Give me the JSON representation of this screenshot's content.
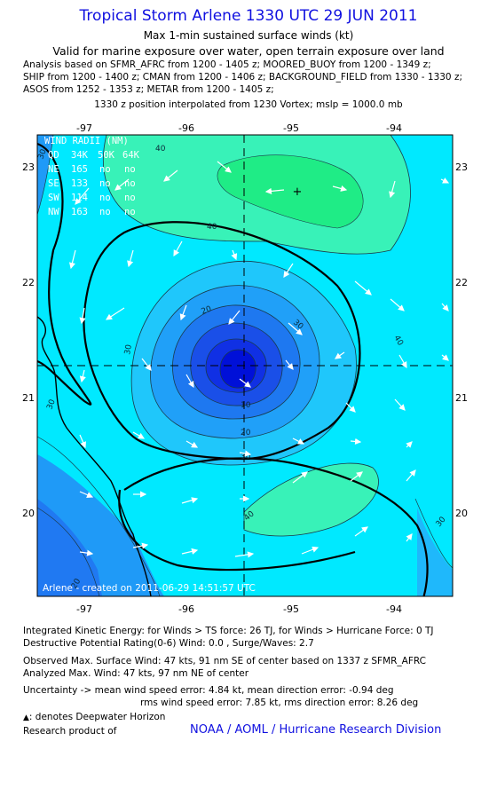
{
  "header": {
    "title": "Tropical Storm Arlene 1330 UTC 29 JUN 2011",
    "subtitle1": "Max 1-min sustained surface winds (kt)",
    "subtitle2": "Valid for marine exposure over water, open terrain exposure over land",
    "analysis_lines": [
      "Analysis based on SFMR_AFRC from 1200 - 1405 z; MOORED_BUOY from 1200 - 1349 z;",
      "SHIP from 1200 - 1400 z; CMAN from 1200 - 1406 z; BACKGROUND_FIELD from 1330 - 1330 z;",
      "ASOS from 1252 - 1353 z; METAR from 1200 - 1405 z;"
    ],
    "position_note": "1330 z position interpolated from 1230 Vortex; mslp = 1000.0 mb"
  },
  "map": {
    "lon_ticks": [
      "-97",
      "-96",
      "-95",
      "-94"
    ],
    "lat_ticks": [
      "23",
      "22",
      "21",
      "20"
    ],
    "center": {
      "lon": -95.0,
      "lat": 21.3
    },
    "contour_labels": [
      "40",
      "40",
      "40",
      "30",
      "20",
      "30",
      "30",
      "10",
      "20",
      "30",
      "40",
      "30",
      "20",
      "30"
    ],
    "wind_radii": {
      "title": "WIND RADII (NM)",
      "header": [
        "QD",
        "34K",
        "50K",
        "64K"
      ],
      "rows": [
        [
          "NE",
          "165",
          "no",
          "no"
        ],
        [
          "SE",
          "133",
          "no",
          "no"
        ],
        [
          "SW",
          "114",
          "no",
          "no"
        ],
        [
          "NW",
          "163",
          "no",
          "no"
        ]
      ]
    },
    "credit": "Arlene - created on 2011-06-29 14:51:57 UTC",
    "colors": {
      "land": "#1f7ff5",
      "base": "#00e9ff",
      "c40": "#33f0b0",
      "c50": "#20e890",
      "core": "#0010e0"
    }
  },
  "footer": {
    "ike": "Integrated Kinetic Energy:  for Winds > TS force: 26 TJ,  for Winds > Hurricane Force: 0 TJ",
    "dpr": "Destructive Potential Rating(0-6)   Wind: 0.0 , Surge/Waves: 2.7",
    "obs_max": "Observed Max. Surface Wind: 47 kts, 91 nm SE of center based on 1337 z SFMR_AFRC",
    "anl_max": "Analyzed Max. Wind: 47 kts, 97 nm NE of center",
    "uncert1": "Uncertainty -> mean wind speed error: 4.84 kt,   mean direction error:  -0.94 deg",
    "uncert2": "rms wind speed error: 7.85 kt,   rms direction error: 8.26 deg",
    "deepwater": ": denotes Deepwater Horizon",
    "research": "Research product of",
    "org": "NOAA / AOML / Hurricane Research Division"
  }
}
